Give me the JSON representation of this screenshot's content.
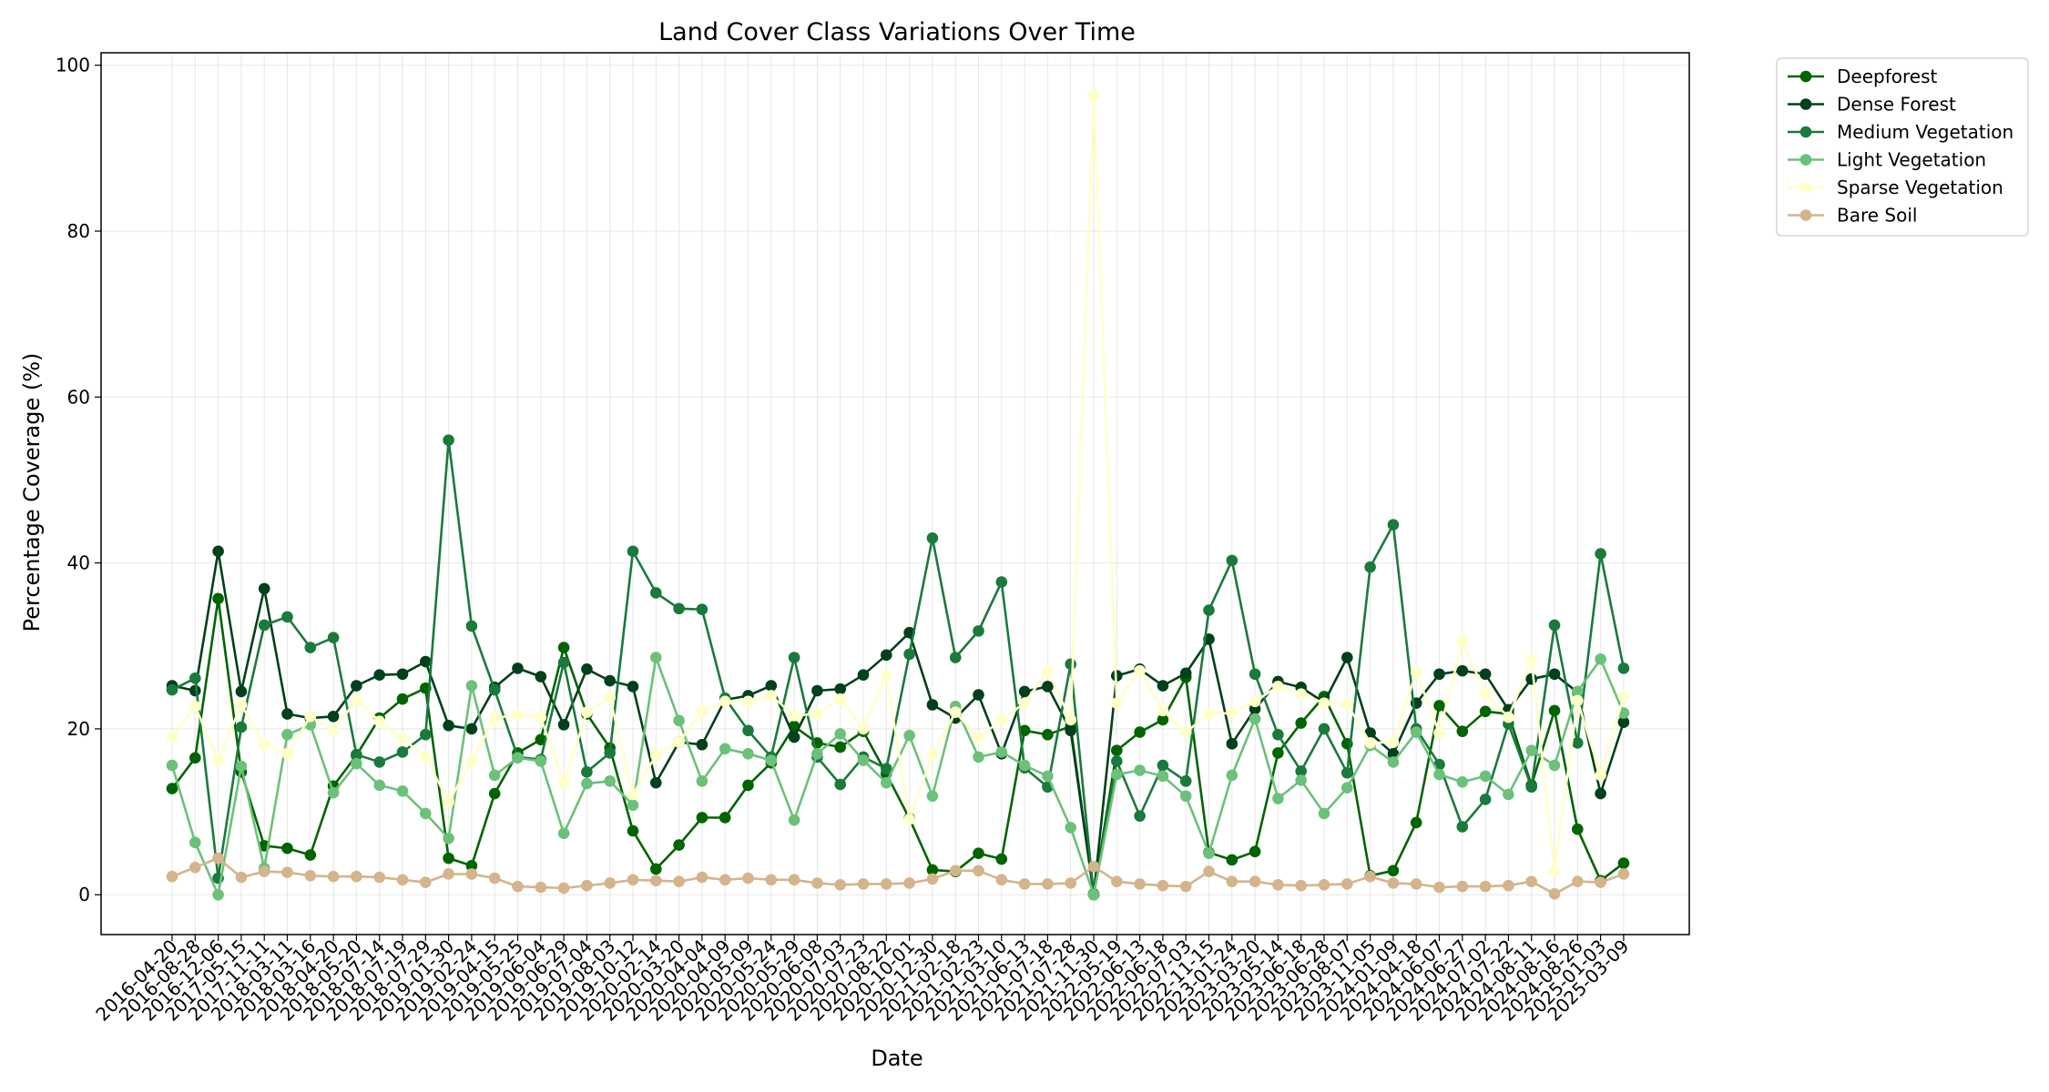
{
  "chart_data": {
    "type": "line",
    "title": "Land Cover Class Variations Over Time",
    "xlabel": "Date",
    "ylabel": "Percentage Coverage (%)",
    "ylim": [
      -4.8,
      101.5
    ],
    "yticks": [
      0,
      20,
      40,
      60,
      80,
      100
    ],
    "grid": true,
    "legend_position": "outside-top-right",
    "x": [
      "2016-04-20",
      "2016-08-28",
      "2016-12-06",
      "2017-05-15",
      "2017-11-11",
      "2018-03-11",
      "2018-03-16",
      "2018-04-20",
      "2018-05-20",
      "2018-07-14",
      "2018-07-19",
      "2018-07-29",
      "2019-01-30",
      "2019-02-24",
      "2019-04-15",
      "2019-05-25",
      "2019-06-04",
      "2019-06-29",
      "2019-07-04",
      "2019-08-03",
      "2019-10-12",
      "2020-02-14",
      "2020-03-20",
      "2020-04-04",
      "2020-04-09",
      "2020-05-09",
      "2020-05-24",
      "2020-05-29",
      "2020-06-08",
      "2020-07-03",
      "2020-07-23",
      "2020-08-22",
      "2020-10-01",
      "2020-12-30",
      "2021-02-18",
      "2021-02-23",
      "2021-03-10",
      "2021-06-13",
      "2021-07-18",
      "2021-07-28",
      "2021-11-30",
      "2022-05-19",
      "2022-06-13",
      "2022-06-18",
      "2022-07-03",
      "2022-11-15",
      "2023-01-24",
      "2023-03-20",
      "2023-05-14",
      "2023-06-18",
      "2023-06-28",
      "2023-08-07",
      "2023-11-05",
      "2024-01-09",
      "2024-04-18",
      "2024-06-07",
      "2024-06-27",
      "2024-07-02",
      "2024-07-22",
      "2024-08-11",
      "2024-08-16",
      "2024-08-26",
      "2025-01-03",
      "2025-03-09"
    ],
    "series": [
      {
        "name": "Deepforest",
        "color": "#006400",
        "values": [
          12.8,
          16.5,
          35.7,
          14.8,
          5.9,
          5.6,
          4.8,
          13.1,
          16.8,
          21.3,
          23.6,
          24.9,
          4.4,
          3.5,
          12.2,
          17.1,
          18.7,
          29.8,
          21.8,
          17.7,
          7.7,
          3.1,
          6.0,
          9.3,
          9.3,
          13.2,
          15.9,
          20.3,
          18.3,
          17.8,
          19.7,
          14.6,
          9.2,
          3.0,
          2.8,
          5.0,
          4.3,
          19.8,
          19.3,
          20.3,
          0.1,
          17.4,
          19.6,
          21.1,
          26.2,
          5.1,
          4.2,
          5.2,
          17.1,
          20.7,
          23.9,
          18.2,
          2.3,
          2.9,
          8.7,
          22.8,
          19.7,
          22.1,
          21.8,
          13.2,
          22.2,
          7.9,
          1.7,
          3.8
        ]
      },
      {
        "name": "Dense Forest",
        "color": "#00401a",
        "values": [
          25.2,
          24.6,
          41.4,
          24.5,
          36.9,
          21.8,
          21.3,
          21.5,
          25.2,
          26.5,
          26.6,
          28.1,
          20.4,
          20.0,
          25.0,
          27.3,
          26.3,
          20.5,
          27.2,
          25.8,
          25.1,
          13.5,
          18.4,
          18.1,
          23.5,
          24.0,
          25.2,
          19.0,
          24.6,
          24.8,
          26.5,
          28.9,
          31.6,
          22.9,
          21.3,
          24.1,
          17.0,
          24.5,
          25.1,
          19.8,
          0.0,
          26.4,
          27.2,
          25.2,
          26.7,
          30.8,
          18.2,
          22.4,
          25.7,
          25.0,
          23.2,
          28.6,
          19.5,
          17.0,
          23.1,
          26.6,
          27.0,
          26.6,
          22.3,
          26.0,
          26.6,
          24.4,
          12.2,
          20.8
        ]
      },
      {
        "name": "Medium Vegetation",
        "color": "#1a7a3c",
        "values": [
          24.7,
          26.1,
          2.0,
          20.2,
          32.5,
          33.5,
          29.8,
          31.0,
          16.9,
          16.0,
          17.2,
          19.3,
          54.8,
          32.4,
          24.7,
          16.6,
          16.3,
          28.0,
          14.8,
          17.1,
          41.4,
          36.4,
          34.5,
          34.4,
          23.7,
          19.8,
          16.6,
          28.6,
          16.6,
          13.3,
          16.6,
          15.2,
          29.0,
          43.0,
          28.6,
          31.8,
          37.7,
          15.3,
          13.0,
          27.8,
          0.0,
          16.1,
          9.5,
          15.6,
          13.7,
          34.3,
          40.3,
          26.6,
          19.3,
          14.9,
          20.0,
          14.7,
          39.5,
          44.6,
          20.0,
          15.7,
          8.2,
          11.5,
          20.6,
          13.0,
          32.5,
          18.3,
          41.1,
          27.3
        ]
      },
      {
        "name": "Light Vegetation",
        "color": "#6cc17a",
        "values": [
          15.6,
          6.3,
          0.0,
          15.5,
          3.2,
          19.3,
          20.5,
          12.3,
          15.8,
          13.2,
          12.5,
          9.8,
          6.8,
          25.2,
          14.4,
          16.5,
          16.1,
          7.4,
          13.4,
          13.7,
          10.8,
          28.6,
          21.0,
          13.7,
          17.6,
          17.0,
          16.2,
          9.0,
          17.0,
          19.4,
          16.2,
          13.5,
          19.2,
          11.9,
          22.7,
          16.6,
          17.2,
          15.6,
          14.3,
          8.1,
          0.0,
          14.5,
          15.0,
          14.3,
          11.9,
          5.0,
          14.4,
          21.2,
          11.6,
          13.8,
          9.8,
          12.9,
          18.0,
          16.0,
          19.6,
          14.5,
          13.6,
          14.3,
          12.1,
          17.4,
          15.6,
          24.5,
          28.4,
          21.9
        ]
      },
      {
        "name": "Sparse Vegetation",
        "color": "#ffffc8",
        "values": [
          19.0,
          22.7,
          16.2,
          22.9,
          18.1,
          17.0,
          21.5,
          19.8,
          23.5,
          20.9,
          18.8,
          16.6,
          11.2,
          16.1,
          21.3,
          21.7,
          21.4,
          13.5,
          22.0,
          23.8,
          12.1,
          16.8,
          18.4,
          22.1,
          23.3,
          23.3,
          24.0,
          21.6,
          21.8,
          23.6,
          20.0,
          26.5,
          9.1,
          16.9,
          22.0,
          18.9,
          21.1,
          23.1,
          27.0,
          21.1,
          96.4,
          23.1,
          27.0,
          22.2,
          19.6,
          21.8,
          21.9,
          23.3,
          25.1,
          24.2,
          23.1,
          23.0,
          18.3,
          18.4,
          26.8,
          19.5,
          30.5,
          24.3,
          21.4,
          28.3,
          2.9,
          23.4,
          14.4,
          23.9
        ]
      },
      {
        "name": "Bare Soil",
        "color": "#d4b48c",
        "values": [
          2.2,
          3.3,
          4.4,
          2.1,
          2.8,
          2.7,
          2.3,
          2.2,
          2.2,
          2.1,
          1.8,
          1.5,
          2.5,
          2.5,
          2.0,
          1.0,
          0.9,
          0.8,
          1.1,
          1.4,
          1.8,
          1.7,
          1.6,
          2.1,
          1.8,
          2.0,
          1.8,
          1.8,
          1.4,
          1.2,
          1.3,
          1.3,
          1.4,
          1.9,
          2.9,
          2.9,
          1.8,
          1.3,
          1.3,
          1.4,
          3.4,
          1.6,
          1.3,
          1.1,
          1.0,
          2.8,
          1.6,
          1.6,
          1.2,
          1.1,
          1.2,
          1.3,
          2.2,
          1.4,
          1.3,
          0.9,
          1.0,
          1.0,
          1.1,
          1.6,
          0.1,
          1.6,
          1.5,
          2.5
        ]
      }
    ]
  }
}
